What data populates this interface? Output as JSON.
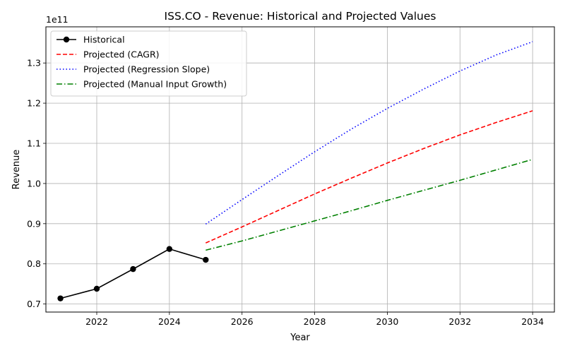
{
  "chart_data": {
    "type": "line",
    "title": "ISS.CO - Revenue: Historical and Projected Values",
    "xlabel": "Year",
    "ylabel": "Revenue",
    "y_offset_label": "1e11",
    "xlim": [
      2020.6,
      2034.6
    ],
    "ylim": [
      0.68,
      1.39
    ],
    "x_ticks": [
      2022,
      2024,
      2026,
      2028,
      2030,
      2032,
      2034
    ],
    "y_ticks": [
      0.7,
      0.8,
      0.9,
      1.0,
      1.1,
      1.2,
      1.3
    ],
    "y_tick_labels": [
      "0.7",
      "0.8",
      "0.9",
      "1.0",
      "1.1",
      "1.2",
      "1.3"
    ],
    "grid": true,
    "legend_position": "top-left",
    "series": [
      {
        "name": "Historical",
        "color": "#000000",
        "style": "solid",
        "marker": "circle",
        "x": [
          2021,
          2022,
          2023,
          2024,
          2025
        ],
        "y": [
          0.714,
          0.738,
          0.787,
          0.837,
          0.81
        ]
      },
      {
        "name": "Projected (CAGR)",
        "color": "#ff0000",
        "style": "dashed",
        "marker": "none",
        "x": [
          2025,
          2026,
          2027,
          2028,
          2029,
          2030,
          2031,
          2032,
          2033,
          2034
        ],
        "y": [
          0.852,
          0.892,
          0.933,
          0.974,
          1.013,
          1.051,
          1.087,
          1.121,
          1.152,
          1.181
        ]
      },
      {
        "name": "Projected (Regression Slope)",
        "color": "#0000ff",
        "style": "dotted",
        "marker": "none",
        "x": [
          2025,
          2026,
          2027,
          2028,
          2029,
          2030,
          2031,
          2032,
          2033,
          2034
        ],
        "y": [
          0.899,
          0.96,
          1.02,
          1.079,
          1.135,
          1.187,
          1.235,
          1.28,
          1.32,
          1.353
        ]
      },
      {
        "name": "Projected (Manual Input Growth)",
        "color": "#008000",
        "style": "dashdot",
        "marker": "none",
        "x": [
          2025,
          2026,
          2027,
          2028,
          2029,
          2030,
          2031,
          2032,
          2033,
          2034
        ],
        "y": [
          0.834,
          0.857,
          0.882,
          0.907,
          0.932,
          0.958,
          0.983,
          1.008,
          1.034,
          1.06
        ]
      }
    ]
  }
}
